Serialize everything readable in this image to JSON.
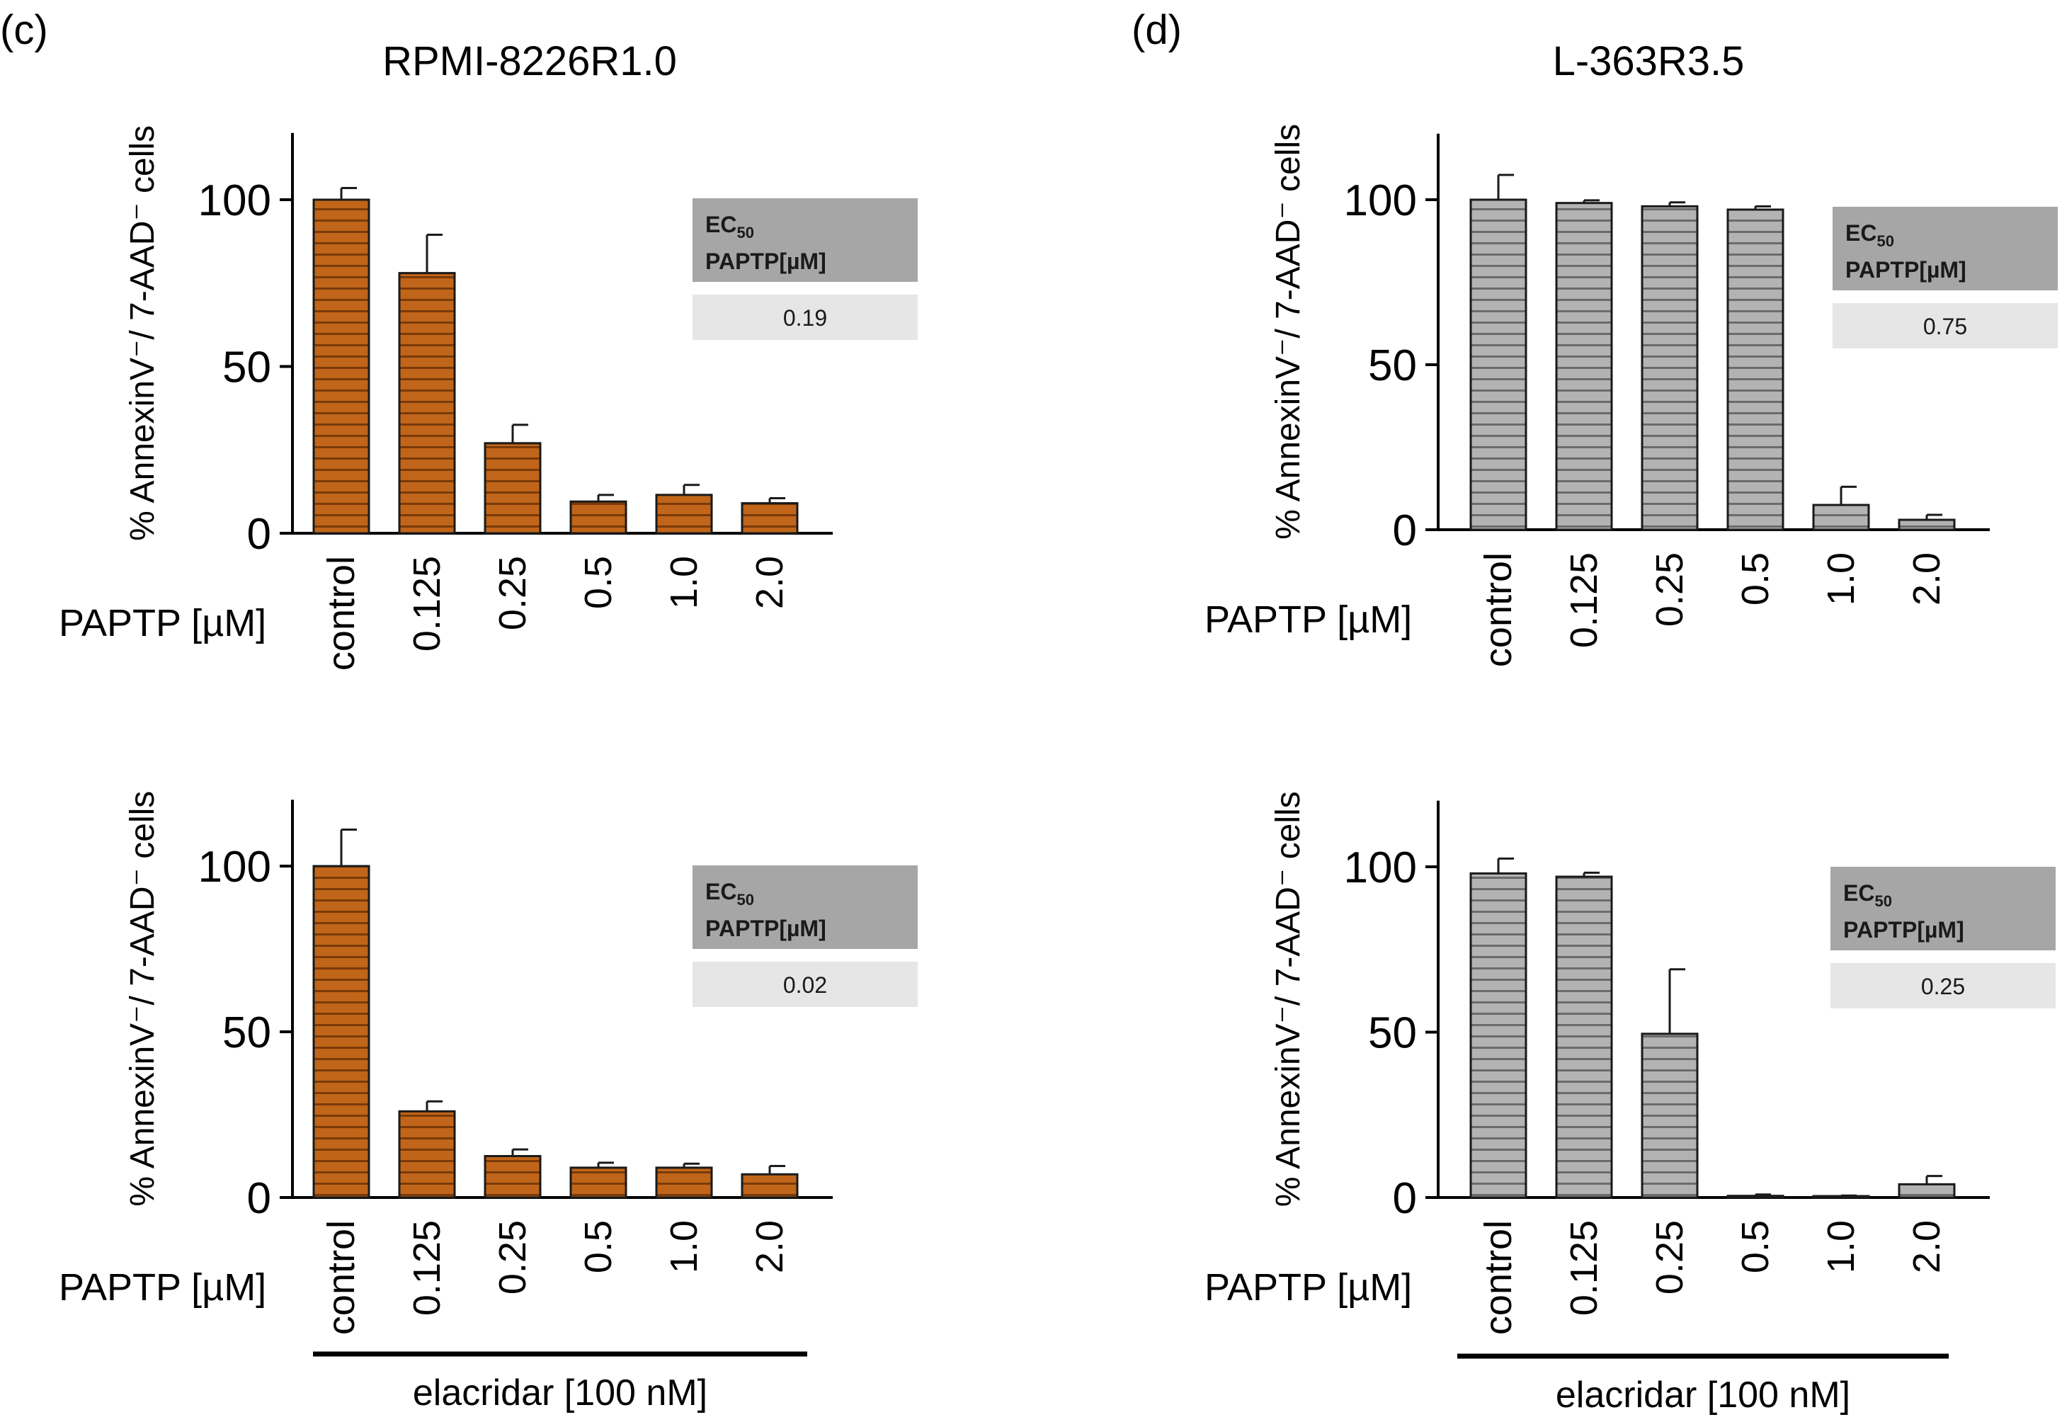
{
  "panels": {
    "c": {
      "letter": "(c)",
      "title": "RPMI-8226R1.0"
    },
    "d": {
      "letter": "(d)",
      "title": "L-363R3.5"
    }
  },
  "colors": {
    "orange_fill": "#c0651a",
    "orange_stripe": "#7a3a08",
    "gray_fill": "#b3b3b3",
    "gray_stripe": "#6b6b6b",
    "ec50_header_bg": "#a6a6a6",
    "ec50_value_bg": "#e6e6e6",
    "axis": "#000000"
  },
  "chart_data": [
    {
      "id": "c-top",
      "panel": "c",
      "type": "bar",
      "ylabel": "% AnnexinV⁻/ 7-AAD⁻ cells",
      "xlabel": "PAPTP [µM]",
      "categories": [
        "control",
        "0.125",
        "0.25",
        "0.5",
        "1.0",
        "2.0"
      ],
      "values": [
        100,
        78,
        27,
        9.5,
        11.5,
        9
      ],
      "errors": [
        3.5,
        11.5,
        5.5,
        2,
        3,
        1.5
      ],
      "ylim": [
        0,
        120
      ],
      "yticks": [
        0,
        50,
        100
      ],
      "style": "orange",
      "ec50": {
        "header_line1": "EC",
        "header_sub": "50",
        "header_line2": "PAPTP[µM]",
        "value": "0.19"
      }
    },
    {
      "id": "c-bottom",
      "panel": "c",
      "type": "bar",
      "ylabel": "% AnnexinV⁻/ 7-AAD⁻ cells",
      "xlabel": "PAPTP [µM]",
      "categories": [
        "control",
        "0.125",
        "0.25",
        "0.5",
        "1.0",
        "2.0"
      ],
      "values": [
        100,
        26,
        12.5,
        9,
        9,
        7
      ],
      "errors": [
        11,
        3,
        2,
        1.5,
        1.2,
        2.5
      ],
      "ylim": [
        0,
        120
      ],
      "yticks": [
        0,
        50,
        100
      ],
      "style": "orange",
      "treatment": "elacridar [100 nM]",
      "ec50": {
        "header_line1": "EC",
        "header_sub": "50",
        "header_line2": "PAPTP[µM]",
        "value": "0.02"
      }
    },
    {
      "id": "d-top",
      "panel": "d",
      "type": "bar",
      "ylabel": "% AnnexinV⁻/ 7-AAD⁻ cells",
      "xlabel": "PAPTP [µM]",
      "categories": [
        "control",
        "0.125",
        "0.25",
        "0.5",
        "1.0",
        "2.0"
      ],
      "values": [
        100,
        99,
        98,
        97,
        7.5,
        3
      ],
      "errors": [
        7.5,
        0.8,
        1.2,
        1.0,
        5.5,
        1.5
      ],
      "ylim": [
        0,
        120
      ],
      "yticks": [
        0,
        50,
        100
      ],
      "style": "gray",
      "ec50": {
        "header_line1": "EC",
        "header_sub": "50",
        "header_line2": "PAPTP[µM]",
        "value": "0.75"
      }
    },
    {
      "id": "d-bottom",
      "panel": "d",
      "type": "bar",
      "ylabel": "% AnnexinV⁻/ 7-AAD⁻ cells",
      "xlabel": "PAPTP [µM]",
      "categories": [
        "control",
        "0.125",
        "0.25",
        "0.5",
        "1.0",
        "2.0"
      ],
      "values": [
        98,
        97,
        49.5,
        0.5,
        0.3,
        4
      ],
      "errors": [
        4.5,
        1.2,
        19.5,
        0.4,
        0.3,
        2.5
      ],
      "ylim": [
        0,
        120
      ],
      "yticks": [
        0,
        50,
        100
      ],
      "style": "gray",
      "treatment": "elacridar [100 nM]",
      "ec50": {
        "header_line1": "EC",
        "header_sub": "50",
        "header_line2": "PAPTP[µM]",
        "value": "0.25"
      }
    }
  ]
}
